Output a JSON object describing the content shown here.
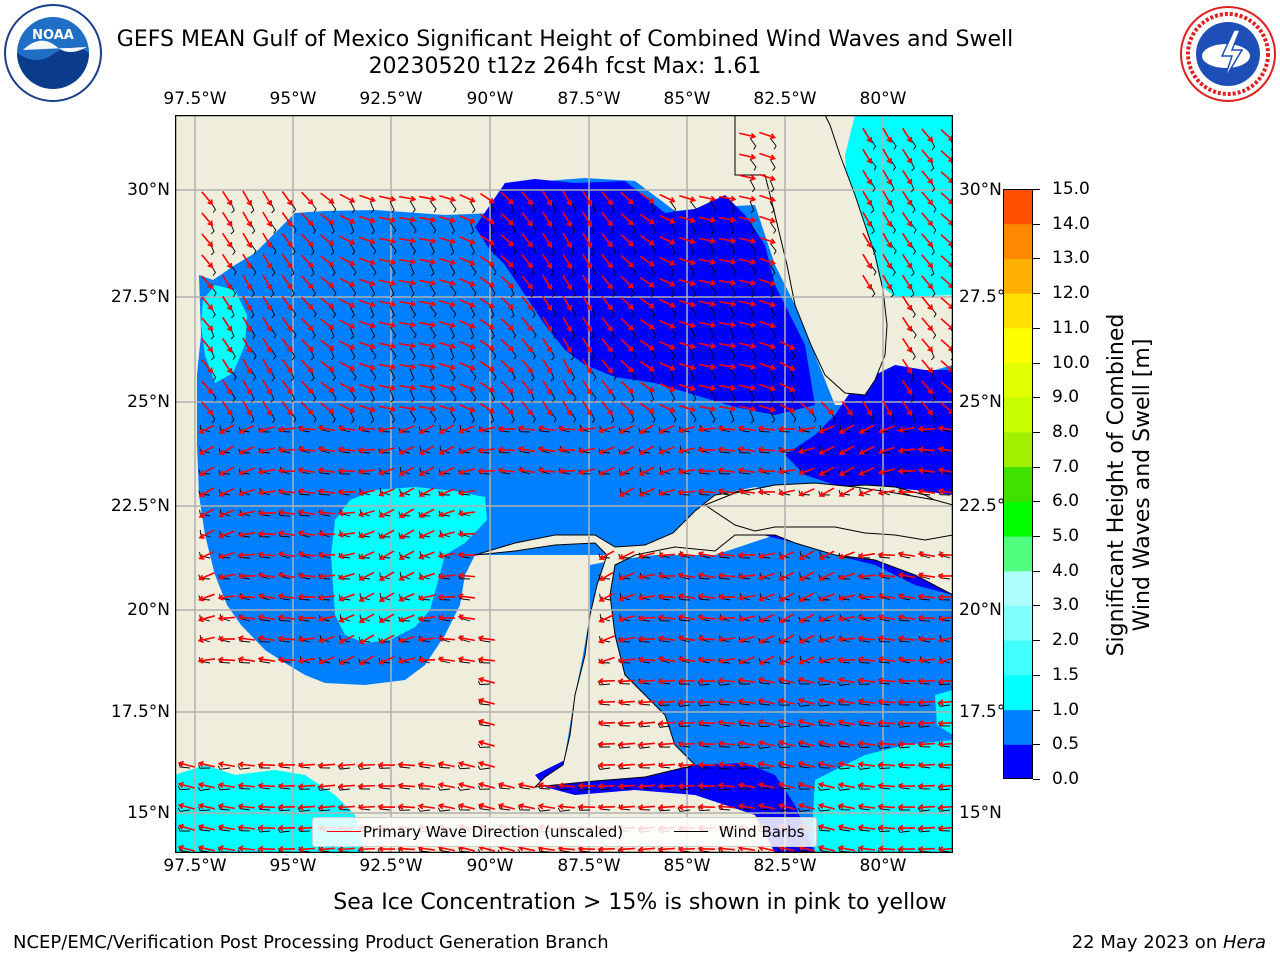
{
  "title": {
    "line1": "GEFS MEAN Gulf of Mexico Significant Height of Combined Wind Waves and Swell",
    "line2": "20230520 t12z 264h fcst   Max: 1.61"
  },
  "logos": {
    "noaa": {
      "text": "NOAA",
      "ring_text": "NATIONAL OCEANIC AND ATMOSPHERIC ADMINISTRATION · U.S. DEPARTMENT OF COMMERCE"
    },
    "nws": {
      "ring_text": "NATIONAL WEATHER SERVICE"
    }
  },
  "map": {
    "lon_labels": [
      "97.5°W",
      "95°W",
      "92.5°W",
      "90°W",
      "87.5°W",
      "85°W",
      "82.5°W",
      "80°W"
    ],
    "lat_labels": [
      "30°N",
      "27.5°N",
      "25°N",
      "22.5°N",
      "20°N",
      "17.5°N",
      "15°N"
    ],
    "colors": {
      "land": "#efeddc",
      "gridlines": "#b0b0b0",
      "wave_arrows": "#ff0000",
      "wind_barbs": "#000000"
    }
  },
  "legend": {
    "wave_label": "Primary Wave Direction (unscaled)",
    "barb_label": "Wind Barbs"
  },
  "colorbar": {
    "title_line1": "Significant Height of Combined",
    "title_line2": "Wind Waves and Swell [m]",
    "labels": [
      "15.0",
      "14.0",
      "13.0",
      "12.0",
      "11.0",
      "10.0",
      "9.0",
      "8.0",
      "7.0",
      "6.0",
      "5.0",
      "4.0",
      "3.0",
      "2.0",
      "1.5",
      "1.0",
      "0.5",
      "0.0"
    ],
    "colors_bottom_to_top": [
      "#0000ff",
      "#0080ff",
      "#00ffff",
      "#40ffff",
      "#80ffff",
      "#b0ffff",
      "#50ff80",
      "#00ff00",
      "#40e000",
      "#a0f000",
      "#c8ff00",
      "#e0ff00",
      "#ffff00",
      "#ffe000",
      "#ffb000",
      "#ff8800",
      "#ff5000",
      "#ff2800",
      "#ff0000"
    ]
  },
  "footer": {
    "seaice_note": "Sea Ice Concentration > 15% is shown in pink to yellow",
    "credit": "NCEP/EMC/Verification Post Processing Product Generation Branch",
    "date_prefix": "22 May 2023 on ",
    "machine": "Hera"
  }
}
